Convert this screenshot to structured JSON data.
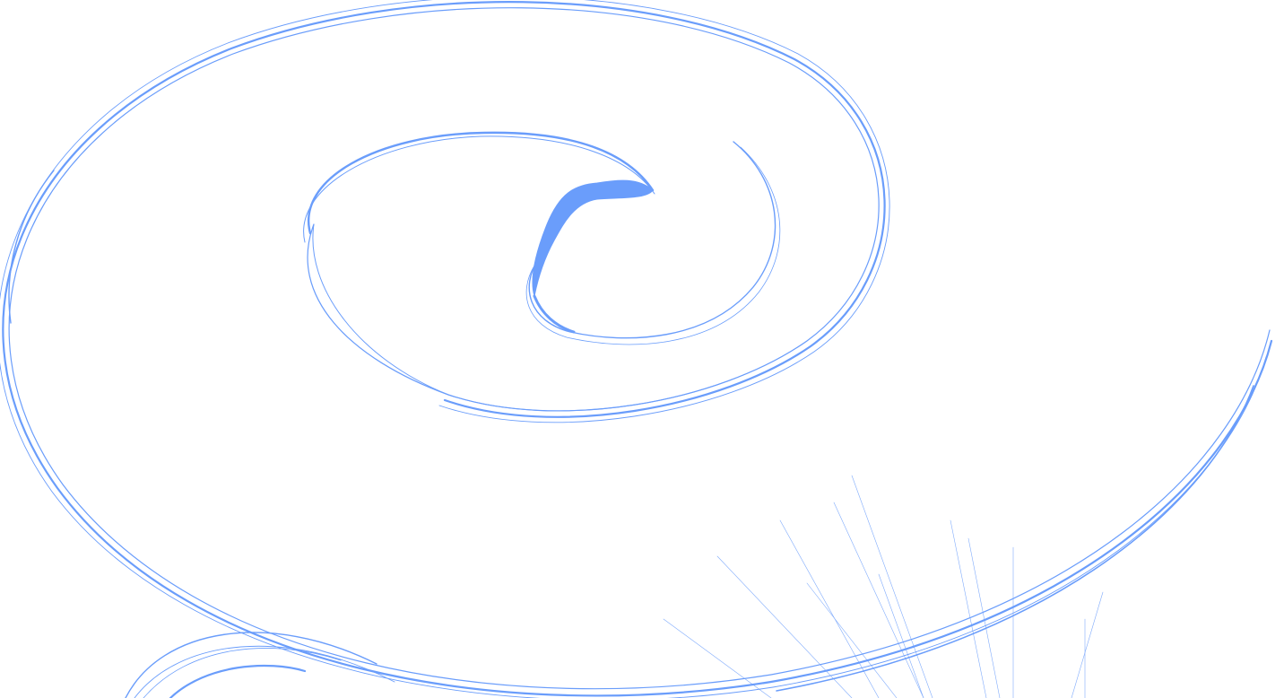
{
  "artwork": {
    "background_color": "#ffffff",
    "stroke_color": "#6a9dfb",
    "subject": "abstract-swirl-pattern"
  }
}
